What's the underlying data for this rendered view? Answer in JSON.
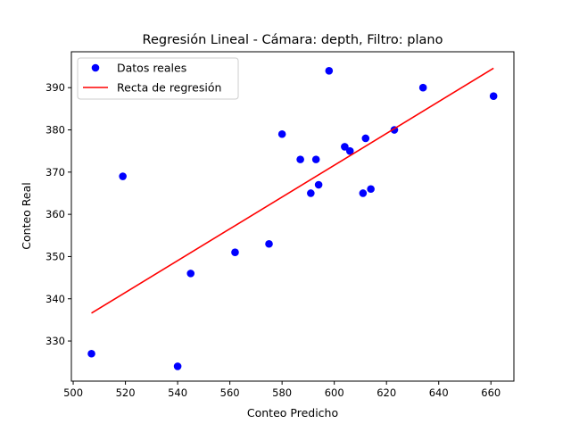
{
  "chart_data": {
    "type": "scatter",
    "title": "Regresión Lineal - Cámara: depth, Filtro: plano",
    "xlabel": "Conteo Predicho",
    "ylabel": "Conteo Real",
    "xlim": [
      499.3,
      668.8
    ],
    "ylim": [
      320.5,
      398.5
    ],
    "xticks": [
      500,
      520,
      540,
      560,
      580,
      600,
      620,
      640,
      660
    ],
    "yticks": [
      330,
      340,
      350,
      360,
      370,
      380,
      390
    ],
    "legend_position": "top-left",
    "series": [
      {
        "name": "Datos reales",
        "kind": "scatter",
        "color": "#0000ff",
        "points": [
          [
            507,
            327
          ],
          [
            519,
            369
          ],
          [
            540,
            324
          ],
          [
            545,
            346
          ],
          [
            562,
            351
          ],
          [
            575,
            353
          ],
          [
            580,
            379
          ],
          [
            587,
            373
          ],
          [
            591,
            365
          ],
          [
            593,
            373
          ],
          [
            594,
            367
          ],
          [
            598,
            394
          ],
          [
            604,
            376
          ],
          [
            606,
            375
          ],
          [
            611,
            365
          ],
          [
            612,
            378
          ],
          [
            614,
            366
          ],
          [
            623,
            380
          ],
          [
            634,
            390
          ],
          [
            661,
            388
          ]
        ]
      },
      {
        "name": "Recta de regresión",
        "kind": "line",
        "color": "#ff0000",
        "points": [
          [
            507,
            336.6
          ],
          [
            661,
            394.6
          ]
        ]
      }
    ]
  }
}
